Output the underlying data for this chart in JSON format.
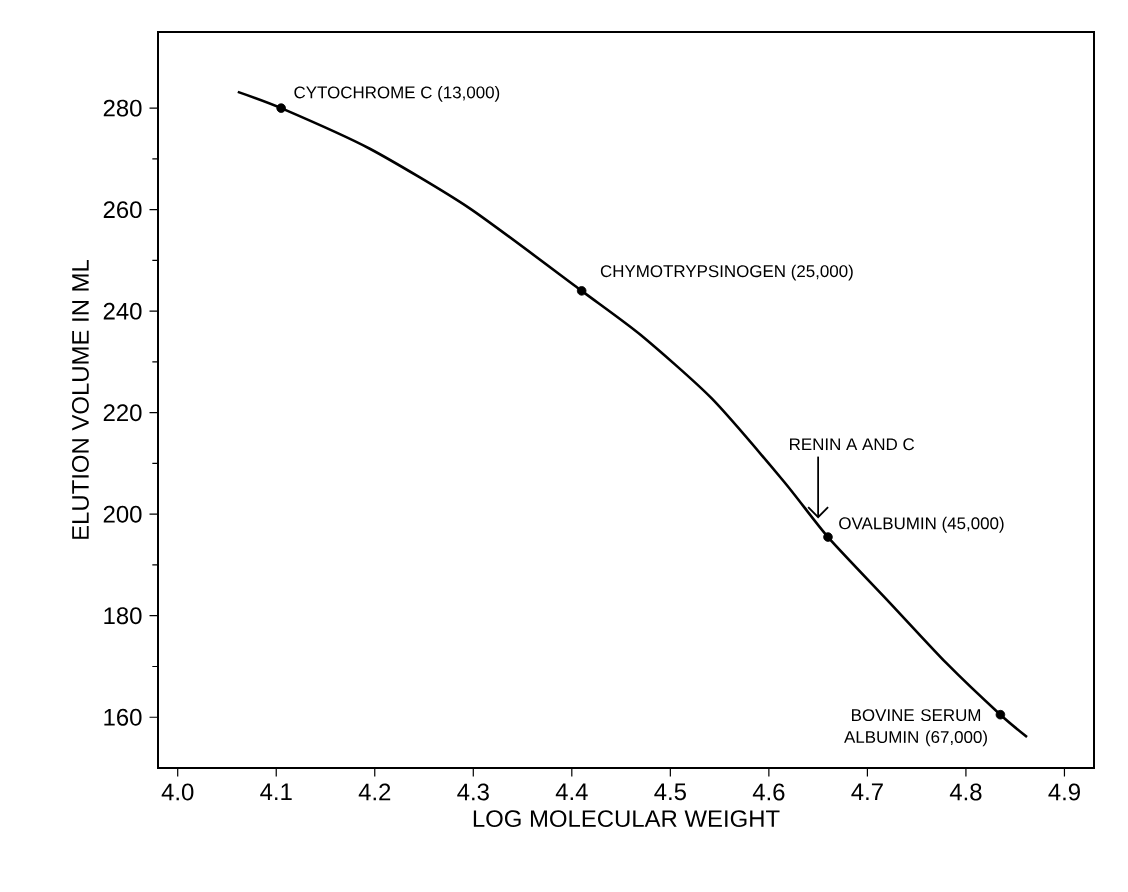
{
  "chart_data": {
    "type": "line",
    "xlabel": "LOG MOLECULAR WEIGHT",
    "ylabel": "ELUTION VOLUME IN ML",
    "xlim": [
      3.98,
      4.93
    ],
    "ylim": [
      150,
      295
    ],
    "xticks": [
      {
        "value": 4,
        "label": "4.0"
      },
      4.1,
      4.2,
      4.3,
      4.4,
      4.5,
      4.6,
      4.7,
      4.8,
      4.9
    ],
    "yticks": [
      160,
      180,
      200,
      220,
      240,
      260,
      280
    ],
    "series": [
      {
        "color": "#000000",
        "marker": "none",
        "x": [
          4.061,
          4.105,
          4.195,
          4.296,
          4.41,
          4.47,
          4.542,
          4.615,
          4.66,
          4.723,
          4.78,
          4.835,
          4.862
        ],
        "values": [
          283.2,
          280,
          272,
          260.3,
          244,
          235.3,
          222.8,
          206.5,
          195.5,
          182.5,
          170.7,
          160.5,
          156.1
        ]
      },
      {
        "type": "scatter",
        "color": "#000000",
        "marker": "circle",
        "x": [
          4.105,
          4.41,
          4.66,
          4.835
        ],
        "values": [
          280,
          244,
          195.5,
          160.5
        ]
      }
    ],
    "annotations": [
      {
        "text": "CYTOCHROME C (13,000)",
        "x": 4.105,
        "y": 280
      },
      {
        "text": "CHYMOTRYPSINOGEN (25,000)",
        "x": 4.41,
        "y": 244
      },
      {
        "text": "OVALBUMIN (45,000)",
        "x": 4.66,
        "y": 195.5
      },
      {
        "text": "BOVINE SERUM ALBUMIN (67,000)",
        "x": 4.835,
        "y": 160.5
      },
      {
        "text": "RENIN A AND C",
        "x": 4.65,
        "y": 198
      }
    ]
  }
}
